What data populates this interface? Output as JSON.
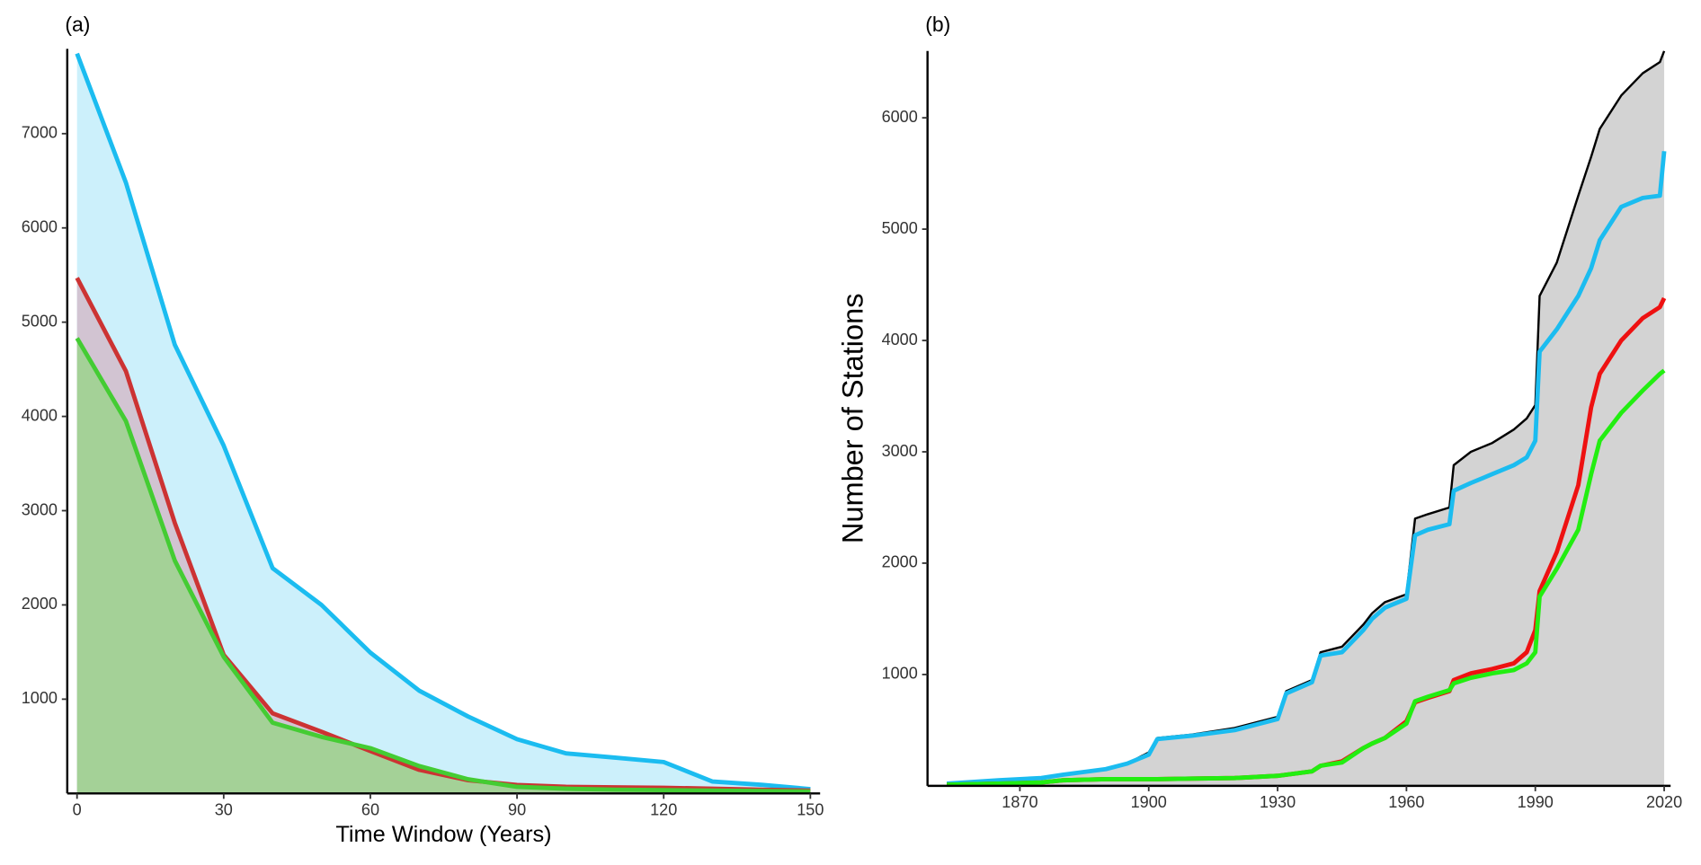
{
  "chart_data": [
    {
      "type": "area",
      "panel_label": "(a)",
      "xlabel": "Time Window (Years)",
      "x": [
        0,
        10,
        20,
        30,
        40,
        50,
        60,
        70,
        80,
        90,
        100,
        110,
        120,
        130,
        140,
        150
      ],
      "xlim": [
        -2,
        152
      ],
      "xticks": [
        0,
        30,
        60,
        90,
        120,
        150
      ],
      "ylim": [
        0,
        7900
      ],
      "yticks": [
        1000,
        2000,
        3000,
        4000,
        5000,
        6000,
        7000
      ],
      "series": [
        {
          "color": "#1bbcf0",
          "fill": "#ccf0fb",
          "values": [
            7850,
            6480,
            4760,
            3690,
            2390,
            2000,
            1494,
            1090,
            816,
            575,
            425,
            380,
            333,
            126,
            92,
            46
          ]
        },
        {
          "color": "#cc3333",
          "fill": "#d2c4d2",
          "values": [
            5470,
            4480,
            2870,
            1470,
            850,
            655,
            450,
            250,
            140,
            90,
            70,
            65,
            60,
            50,
            40,
            30
          ]
        },
        {
          "color": "#44cc33",
          "fill": "#a4d197",
          "values": [
            4830,
            3950,
            2470,
            1450,
            750,
            600,
            480,
            290,
            150,
            70,
            50,
            40,
            35,
            30,
            25,
            20
          ]
        }
      ]
    },
    {
      "type": "area",
      "panel_label": "(b)",
      "ylabel": "Number of Stations",
      "x": [
        1853,
        1865,
        1875,
        1880,
        1890,
        1895,
        1900,
        1902,
        1910,
        1920,
        1930,
        1932,
        1938,
        1940,
        1945,
        1950,
        1952,
        1955,
        1960,
        1962,
        1965,
        1970,
        1971,
        1975,
        1980,
        1985,
        1988,
        1990,
        1991,
        1995,
        2000,
        2003,
        2005,
        2010,
        2015,
        2019,
        2020
      ],
      "xlim": [
        1848.5,
        2021.5
      ],
      "xticks": [
        1870,
        1900,
        1930,
        1960,
        1990,
        2020
      ],
      "ylim": [
        0,
        6600
      ],
      "yticks": [
        1000,
        2000,
        3000,
        4000,
        5000,
        6000
      ],
      "series": [
        {
          "color": "#000000",
          "fill": "#d3d3d3",
          "values": [
            20,
            50,
            70,
            100,
            150,
            200,
            300,
            430,
            460,
            520,
            620,
            850,
            950,
            1200,
            1250,
            1450,
            1550,
            1650,
            1720,
            2400,
            2440,
            2500,
            2880,
            3000,
            3080,
            3200,
            3300,
            3420,
            4400,
            4700,
            5300,
            5650,
            5900,
            6200,
            6400,
            6500,
            6600
          ]
        },
        {
          "color": "#1bbcf0",
          "values": [
            20,
            50,
            70,
            100,
            150,
            200,
            280,
            420,
            450,
            500,
            600,
            830,
            930,
            1170,
            1200,
            1400,
            1500,
            1600,
            1680,
            2250,
            2300,
            2350,
            2650,
            2720,
            2800,
            2880,
            2950,
            3100,
            3900,
            4100,
            4400,
            4650,
            4900,
            5200,
            5280,
            5300,
            5700
          ]
        },
        {
          "color": "#ee1111",
          "values": [
            10,
            20,
            30,
            50,
            60,
            60,
            60,
            60,
            65,
            70,
            90,
            100,
            130,
            180,
            220,
            340,
            380,
            430,
            580,
            750,
            790,
            850,
            950,
            1010,
            1050,
            1100,
            1200,
            1400,
            1750,
            2100,
            2700,
            3400,
            3700,
            4000,
            4200,
            4300,
            4380
          ]
        },
        {
          "color": "#22ee11",
          "values": [
            10,
            20,
            30,
            50,
            60,
            60,
            60,
            60,
            65,
            70,
            90,
            100,
            130,
            180,
            210,
            340,
            380,
            430,
            560,
            760,
            800,
            860,
            920,
            970,
            1010,
            1040,
            1100,
            1200,
            1700,
            1950,
            2300,
            2800,
            3100,
            3350,
            3550,
            3700,
            3730
          ]
        }
      ]
    }
  ]
}
